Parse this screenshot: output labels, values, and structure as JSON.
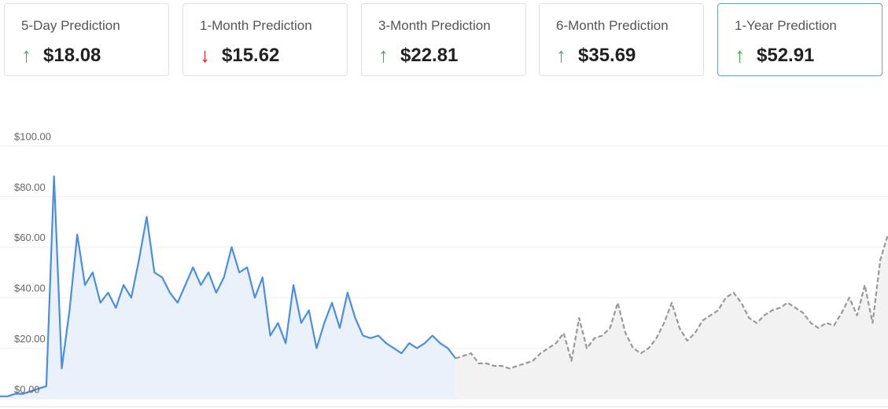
{
  "cards": [
    {
      "label": "5-Day Prediction",
      "value": "$18.08",
      "direction": "up"
    },
    {
      "label": "1-Month Prediction",
      "value": "$15.62",
      "direction": "down"
    },
    {
      "label": "3-Month Prediction",
      "value": "$22.81",
      "direction": "up"
    },
    {
      "label": "6-Month Prediction",
      "value": "$35.69",
      "direction": "up"
    },
    {
      "label": "1-Year Prediction",
      "value": "$52.91",
      "direction": "up"
    }
  ],
  "selected_card": 4,
  "chart_data": {
    "type": "area",
    "ylim": [
      0,
      100
    ],
    "yticks": [
      {
        "value": 0,
        "label": "$0.00"
      },
      {
        "value": 20,
        "label": "$20.00"
      },
      {
        "value": 40,
        "label": "$40.00"
      },
      {
        "value": 60,
        "label": "$60.00"
      },
      {
        "value": 80,
        "label": "$80.00"
      },
      {
        "value": 100,
        "label": "$100.00"
      }
    ],
    "grid": true,
    "series": [
      {
        "color": "#4a8ee0",
        "fill": "#eaf1fb",
        "dashed": false,
        "values": [
          1,
          1,
          2,
          2,
          3,
          4,
          5,
          88,
          12,
          35,
          65,
          45,
          50,
          38,
          42,
          36,
          45,
          40,
          55,
          72,
          50,
          48,
          42,
          38,
          45,
          52,
          45,
          50,
          42,
          48,
          60,
          50,
          52,
          40,
          48,
          25,
          30,
          22,
          45,
          30,
          35,
          20,
          30,
          38,
          28,
          42,
          32,
          25,
          24,
          25,
          22,
          20,
          18,
          22,
          20,
          22,
          25,
          22,
          20,
          16,
          null,
          null,
          null,
          null,
          null,
          null,
          null,
          null,
          null,
          null,
          null,
          null,
          null,
          null,
          null,
          null,
          null,
          null,
          null,
          null,
          null,
          null,
          null,
          null,
          null,
          null,
          null,
          null,
          null,
          null,
          null,
          null,
          null,
          null,
          null,
          null,
          null,
          null,
          null,
          null,
          null,
          null,
          null,
          null,
          null,
          null,
          null,
          null,
          null,
          null,
          null,
          null,
          null,
          null,
          null,
          null
        ]
      },
      {
        "color": "#999999",
        "fill": "#f2f2f2",
        "dashed": true,
        "values": [
          null,
          null,
          null,
          null,
          null,
          null,
          null,
          null,
          null,
          null,
          null,
          null,
          null,
          null,
          null,
          null,
          null,
          null,
          null,
          null,
          null,
          null,
          null,
          null,
          null,
          null,
          null,
          null,
          null,
          null,
          null,
          null,
          null,
          null,
          null,
          null,
          null,
          null,
          null,
          null,
          null,
          null,
          null,
          null,
          null,
          null,
          null,
          null,
          null,
          null,
          null,
          null,
          null,
          null,
          null,
          null,
          null,
          null,
          null,
          16,
          17,
          18,
          14,
          14,
          13,
          13,
          12,
          13,
          14,
          15,
          18,
          20,
          22,
          26,
          15,
          32,
          20,
          24,
          25,
          28,
          38,
          26,
          20,
          18,
          20,
          24,
          30,
          38,
          28,
          23,
          26,
          31,
          33,
          35,
          40,
          42,
          38,
          32,
          30,
          33,
          35,
          36,
          38,
          36,
          34,
          30,
          28,
          30,
          29,
          34,
          40,
          33,
          45,
          30,
          55,
          65
        ]
      }
    ]
  }
}
